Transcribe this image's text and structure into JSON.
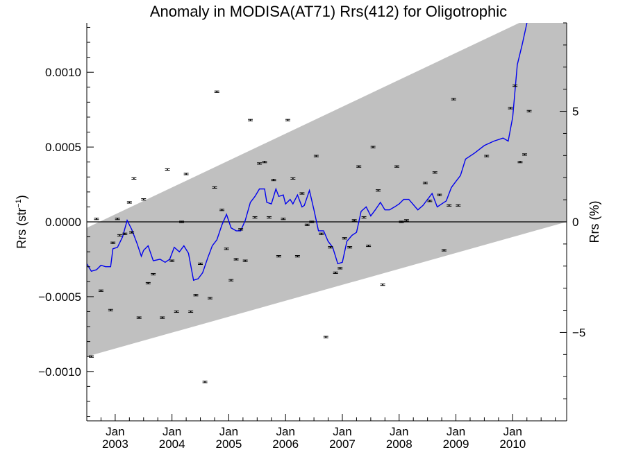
{
  "chart_data": {
    "type": "scatter",
    "title": "Anomaly in MODISA(AT71) Rrs(412) for Oligotrophic",
    "ylabel_left": "Rrs (str",
    "ylabel_left_sup": "−1",
    "ylabel_left_close": ")",
    "ylabel_right": "Rrs (%)",
    "xlim": [
      2002.5,
      2010.95
    ],
    "ylim": [
      -0.00133,
      0.00133
    ],
    "ylim_right": [
      -9.0,
      9.0
    ],
    "x_ticks": [
      {
        "x": 2003.0,
        "line1": "Jan",
        "line2": "2003"
      },
      {
        "x": 2004.0,
        "line1": "Jan",
        "line2": "2004"
      },
      {
        "x": 2005.0,
        "line1": "Jan",
        "line2": "2005"
      },
      {
        "x": 2006.0,
        "line1": "Jan",
        "line2": "2006"
      },
      {
        "x": 2007.0,
        "line1": "Jan",
        "line2": "2007"
      },
      {
        "x": 2008.0,
        "line1": "Jan",
        "line2": "2008"
      },
      {
        "x": 2009.0,
        "line1": "Jan",
        "line2": "2009"
      },
      {
        "x": 2010.0,
        "line1": "Jan",
        "line2": "2010"
      }
    ],
    "y_ticks_left": [
      {
        "v": 0.001,
        "label": "0.0010"
      },
      {
        "v": 0.0005,
        "label": "0.0005"
      },
      {
        "v": 0.0,
        "label": "0.0000"
      },
      {
        "v": -0.0005,
        "label": "−0.0005"
      },
      {
        "v": -0.001,
        "label": "−0.0010"
      }
    ],
    "y_ticks_right": [
      {
        "v": 5,
        "label": "5"
      },
      {
        "v": 0,
        "label": "0"
      },
      {
        "v": -5,
        "label": "−5"
      }
    ],
    "band": {
      "upper": [
        [
          2002.5,
          -4e-05
        ],
        [
          2010.95,
          0.00148
        ]
      ],
      "lower": [
        [
          2002.5,
          -0.0009
        ],
        [
          2010.95,
          0.0
        ]
      ]
    },
    "colors": {
      "band": "#c0c0c0",
      "line": "#0000ee",
      "points": "#000000",
      "zero_line": "#000000"
    },
    "points": [
      [
        2002.58,
        -0.0009
      ],
      [
        2002.67,
        2e-05
      ],
      [
        2002.75,
        -0.00046
      ],
      [
        2002.92,
        -0.00059
      ],
      [
        2002.96,
        -0.00014
      ],
      [
        2003.04,
        2e-05
      ],
      [
        2003.08,
        -9e-05
      ],
      [
        2003.17,
        -8e-05
      ],
      [
        2003.25,
        0.00013
      ],
      [
        2003.29,
        -7e-05
      ],
      [
        2003.33,
        0.00029
      ],
      [
        2003.42,
        -0.00064
      ],
      [
        2003.5,
        0.00015
      ],
      [
        2003.58,
        -0.00041
      ],
      [
        2003.67,
        -0.00035
      ],
      [
        2003.83,
        -0.00064
      ],
      [
        2003.92,
        0.00035
      ],
      [
        2004.0,
        -0.00026
      ],
      [
        2004.08,
        -0.0006
      ],
      [
        2004.17,
        0.0
      ],
      [
        2004.25,
        0.00032
      ],
      [
        2004.33,
        -0.0006
      ],
      [
        2004.42,
        -0.00049
      ],
      [
        2004.5,
        -0.00028
      ],
      [
        2004.58,
        -0.00107
      ],
      [
        2004.67,
        -0.00051
      ],
      [
        2004.75,
        0.00023
      ],
      [
        2004.79,
        0.00087
      ],
      [
        2004.88,
        8e-05
      ],
      [
        2004.96,
        -0.00018
      ],
      [
        2005.04,
        -0.00039
      ],
      [
        2005.13,
        -0.00025
      ],
      [
        2005.21,
        -5e-05
      ],
      [
        2005.29,
        -0.00026
      ],
      [
        2005.38,
        0.00068
      ],
      [
        2005.46,
        3e-05
      ],
      [
        2005.54,
        0.00039
      ],
      [
        2005.63,
        0.0004
      ],
      [
        2005.71,
        3e-05
      ],
      [
        2005.79,
        0.00028
      ],
      [
        2005.88,
        -0.00023
      ],
      [
        2005.96,
        2e-05
      ],
      [
        2006.04,
        0.00068
      ],
      [
        2006.13,
        0.00029
      ],
      [
        2006.21,
        -0.00023
      ],
      [
        2006.29,
        0.00019
      ],
      [
        2006.38,
        -2e-05
      ],
      [
        2006.46,
        0.0
      ],
      [
        2006.54,
        0.00044
      ],
      [
        2006.63,
        -8e-05
      ],
      [
        2006.71,
        -0.00077
      ],
      [
        2006.79,
        -0.00017
      ],
      [
        2006.88,
        -0.00034
      ],
      [
        2006.96,
        -0.00031
      ],
      [
        2007.04,
        -0.00011
      ],
      [
        2007.13,
        -0.00017
      ],
      [
        2007.21,
        1e-05
      ],
      [
        2007.29,
        0.00037
      ],
      [
        2007.38,
        3e-05
      ],
      [
        2007.46,
        -0.00016
      ],
      [
        2007.54,
        0.0005
      ],
      [
        2007.63,
        0.00021
      ],
      [
        2007.71,
        -0.00042
      ],
      [
        2007.96,
        0.00037
      ],
      [
        2008.04,
        0.0
      ],
      [
        2008.13,
        1e-05
      ],
      [
        2008.46,
        0.00026
      ],
      [
        2008.54,
        0.00014
      ],
      [
        2008.63,
        0.00033
      ],
      [
        2008.71,
        0.00018
      ],
      [
        2008.79,
        -0.00019
      ],
      [
        2008.88,
        0.00011
      ],
      [
        2008.96,
        0.00082
      ],
      [
        2009.04,
        0.00011
      ],
      [
        2009.54,
        0.00044
      ],
      [
        2009.96,
        0.00076
      ],
      [
        2010.04,
        0.00091
      ],
      [
        2010.13,
        0.0004
      ],
      [
        2010.21,
        0.00045
      ],
      [
        2010.29,
        0.00074
      ]
    ],
    "error_halfwidth": 5e-06,
    "line": [
      [
        2002.5,
        -0.00028
      ],
      [
        2002.58,
        -0.00033
      ],
      [
        2002.67,
        -0.00032
      ],
      [
        2002.75,
        -0.00029
      ],
      [
        2002.83,
        -0.0003
      ],
      [
        2002.92,
        -0.0003
      ],
      [
        2002.96,
        -0.00018
      ],
      [
        2003.04,
        -0.00017
      ],
      [
        2003.13,
        -0.0001
      ],
      [
        2003.21,
        1e-05
      ],
      [
        2003.29,
        -5e-05
      ],
      [
        2003.38,
        -0.00014
      ],
      [
        2003.46,
        -0.00023
      ],
      [
        2003.5,
        -0.00019
      ],
      [
        2003.58,
        -0.00016
      ],
      [
        2003.67,
        -0.00026
      ],
      [
        2003.79,
        -0.00025
      ],
      [
        2003.88,
        -0.00027
      ],
      [
        2003.96,
        -0.00025
      ],
      [
        2004.04,
        -0.00017
      ],
      [
        2004.13,
        -0.0002
      ],
      [
        2004.21,
        -0.00016
      ],
      [
        2004.29,
        -0.00021
      ],
      [
        2004.38,
        -0.00039
      ],
      [
        2004.46,
        -0.00038
      ],
      [
        2004.54,
        -0.00034
      ],
      [
        2004.63,
        -0.00024
      ],
      [
        2004.71,
        -0.00016
      ],
      [
        2004.79,
        -0.00012
      ],
      [
        2004.88,
        -2e-05
      ],
      [
        2004.96,
        5e-05
      ],
      [
        2005.04,
        -4e-05
      ],
      [
        2005.13,
        -6e-05
      ],
      [
        2005.21,
        -6e-05
      ],
      [
        2005.29,
        1e-05
      ],
      [
        2005.38,
        0.00013
      ],
      [
        2005.46,
        0.00017
      ],
      [
        2005.54,
        0.00022
      ],
      [
        2005.63,
        0.00022
      ],
      [
        2005.67,
        0.00013
      ],
      [
        2005.75,
        0.00012
      ],
      [
        2005.83,
        0.00022
      ],
      [
        2005.88,
        0.00017
      ],
      [
        2005.96,
        0.00018
      ],
      [
        2006.0,
        0.00012
      ],
      [
        2006.08,
        0.00015
      ],
      [
        2006.13,
        0.00012
      ],
      [
        2006.21,
        0.00018
      ],
      [
        2006.29,
        0.0001
      ],
      [
        2006.33,
        0.00011
      ],
      [
        2006.42,
        0.00021
      ],
      [
        2006.5,
        8e-05
      ],
      [
        2006.58,
        -6e-05
      ],
      [
        2006.67,
        -6e-05
      ],
      [
        2006.75,
        -0.00013
      ],
      [
        2006.83,
        -0.00017
      ],
      [
        2006.92,
        -0.00028
      ],
      [
        2007.0,
        -0.00027
      ],
      [
        2007.08,
        -0.00013
      ],
      [
        2007.17,
        -9e-05
      ],
      [
        2007.25,
        -7e-05
      ],
      [
        2007.33,
        7e-05
      ],
      [
        2007.42,
        0.0001
      ],
      [
        2007.5,
        4e-05
      ],
      [
        2007.58,
        8e-05
      ],
      [
        2007.67,
        0.00013
      ],
      [
        2007.75,
        8e-05
      ],
      [
        2007.83,
        8e-05
      ],
      [
        2007.92,
        0.0001
      ],
      [
        2008.0,
        0.00012
      ],
      [
        2008.08,
        0.00015
      ],
      [
        2008.17,
        0.00015
      ],
      [
        2008.33,
        8e-05
      ],
      [
        2008.42,
        0.00011
      ],
      [
        2008.5,
        0.00015
      ],
      [
        2008.58,
        0.00019
      ],
      [
        2008.67,
        0.0001
      ],
      [
        2008.75,
        0.00012
      ],
      [
        2008.83,
        0.00014
      ],
      [
        2008.92,
        0.00023
      ],
      [
        2009.0,
        0.00027
      ],
      [
        2009.08,
        0.00031
      ],
      [
        2009.17,
        0.00042
      ],
      [
        2009.33,
        0.00046
      ],
      [
        2009.5,
        0.00051
      ],
      [
        2009.67,
        0.00054
      ],
      [
        2009.83,
        0.00056
      ],
      [
        2009.92,
        0.00054
      ],
      [
        2010.0,
        0.0007
      ],
      [
        2010.08,
        0.00105
      ],
      [
        2010.17,
        0.00119
      ],
      [
        2010.25,
        0.00133
      ]
    ]
  }
}
